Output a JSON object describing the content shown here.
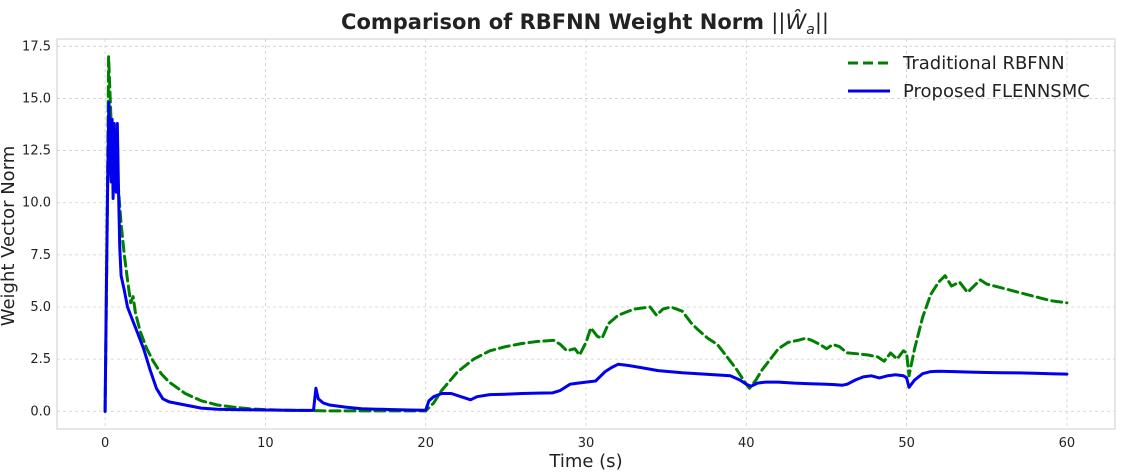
{
  "chart_data": {
    "type": "line",
    "title": "Comparison of RBFNN Weight Norm ||Ŵa||",
    "title_main": "Comparison of RBFNN Weight Norm ",
    "title_math": "||Ŵ",
    "title_sub": "a",
    "title_end": "||",
    "xlabel": "Time (s)",
    "ylabel": "Weight Vector Norm",
    "xlim": [
      -3,
      63
    ],
    "ylim": [
      -0.85,
      17.85
    ],
    "xticks": [
      0,
      10,
      20,
      30,
      40,
      50,
      60
    ],
    "xtick_labels": [
      "0",
      "10",
      "20",
      "30",
      "40",
      "50",
      "60"
    ],
    "yticks": [
      0,
      2.5,
      5,
      7.5,
      10,
      12.5,
      15,
      17.5
    ],
    "ytick_labels": [
      "0.0",
      "2.5",
      "5.0",
      "7.5",
      "10.0",
      "12.5",
      "15.0",
      "17.5"
    ],
    "grid": true,
    "legend_position": "top-right",
    "series": [
      {
        "name": "Traditional RBFNN",
        "color": "#008000",
        "style": "dashed",
        "points": [
          [
            0,
            0
          ],
          [
            0.12,
            8.0
          ],
          [
            0.22,
            17.0
          ],
          [
            0.32,
            15.0
          ],
          [
            0.42,
            13.0
          ],
          [
            0.55,
            12.5
          ],
          [
            0.7,
            11.8
          ],
          [
            0.85,
            10.5
          ],
          [
            1.0,
            9.0
          ],
          [
            1.2,
            7.5
          ],
          [
            1.4,
            6.3
          ],
          [
            1.6,
            5.2
          ],
          [
            1.75,
            5.5
          ],
          [
            1.9,
            4.7
          ],
          [
            2.2,
            3.8
          ],
          [
            2.6,
            3.0
          ],
          [
            3.0,
            2.4
          ],
          [
            3.5,
            1.8
          ],
          [
            4.0,
            1.4
          ],
          [
            5.0,
            0.85
          ],
          [
            6.0,
            0.5
          ],
          [
            7.0,
            0.3
          ],
          [
            8.0,
            0.2
          ],
          [
            9.0,
            0.12
          ],
          [
            10.0,
            0.08
          ],
          [
            11.0,
            0.05
          ],
          [
            12.0,
            0.04
          ],
          [
            13.0,
            0.03
          ],
          [
            14.0,
            0.02
          ],
          [
            16.0,
            0.02
          ],
          [
            18.0,
            0.02
          ],
          [
            20.0,
            0.02
          ],
          [
            20.5,
            0.4
          ],
          [
            21.0,
            1.0
          ],
          [
            22.0,
            1.9
          ],
          [
            23.0,
            2.5
          ],
          [
            24.0,
            2.9
          ],
          [
            25.0,
            3.1
          ],
          [
            26.0,
            3.25
          ],
          [
            27.0,
            3.35
          ],
          [
            28.0,
            3.4
          ],
          [
            28.4,
            3.2
          ],
          [
            28.8,
            2.9
          ],
          [
            29.3,
            3.0
          ],
          [
            29.6,
            2.7
          ],
          [
            30.0,
            3.3
          ],
          [
            30.3,
            4.0
          ],
          [
            30.7,
            3.6
          ],
          [
            31.0,
            3.5
          ],
          [
            31.4,
            4.2
          ],
          [
            32.0,
            4.6
          ],
          [
            33.0,
            4.9
          ],
          [
            34.0,
            5.0
          ],
          [
            34.4,
            4.6
          ],
          [
            34.8,
            4.9
          ],
          [
            35.3,
            5.0
          ],
          [
            36.0,
            4.8
          ],
          [
            36.6,
            4.2
          ],
          [
            37.0,
            3.9
          ],
          [
            37.6,
            3.5
          ],
          [
            38.2,
            3.2
          ],
          [
            38.8,
            2.6
          ],
          [
            39.4,
            2.0
          ],
          [
            40.0,
            1.3
          ],
          [
            40.2,
            1.1
          ],
          [
            40.6,
            1.5
          ],
          [
            41.0,
            2.0
          ],
          [
            41.6,
            2.6
          ],
          [
            42.0,
            3.0
          ],
          [
            42.6,
            3.3
          ],
          [
            43.2,
            3.4
          ],
          [
            43.7,
            3.5
          ],
          [
            44.1,
            3.4
          ],
          [
            44.6,
            3.2
          ],
          [
            45.0,
            3.0
          ],
          [
            45.4,
            3.2
          ],
          [
            45.8,
            3.1
          ],
          [
            46.3,
            2.8
          ],
          [
            47.0,
            2.75
          ],
          [
            47.6,
            2.7
          ],
          [
            48.2,
            2.6
          ],
          [
            48.6,
            2.4
          ],
          [
            49.0,
            2.8
          ],
          [
            49.4,
            2.5
          ],
          [
            49.8,
            2.9
          ],
          [
            50.0,
            2.8
          ],
          [
            50.15,
            1.7
          ],
          [
            50.5,
            3.0
          ],
          [
            51.0,
            4.5
          ],
          [
            51.5,
            5.6
          ],
          [
            52.0,
            6.2
          ],
          [
            52.4,
            6.5
          ],
          [
            52.8,
            6.0
          ],
          [
            53.3,
            6.2
          ],
          [
            53.8,
            5.7
          ],
          [
            54.2,
            6.0
          ],
          [
            54.6,
            6.3
          ],
          [
            55.0,
            6.1
          ],
          [
            56.0,
            5.9
          ],
          [
            57.0,
            5.7
          ],
          [
            58.0,
            5.5
          ],
          [
            59.0,
            5.3
          ],
          [
            60.0,
            5.2
          ]
        ]
      },
      {
        "name": "Proposed FLENNSMC",
        "color": "#0000ee",
        "style": "solid",
        "points": [
          [
            0,
            0
          ],
          [
            0.08,
            6.0
          ],
          [
            0.16,
            11.0
          ],
          [
            0.24,
            14.8
          ],
          [
            0.32,
            12.0
          ],
          [
            0.38,
            11.0
          ],
          [
            0.44,
            14.0
          ],
          [
            0.5,
            10.2
          ],
          [
            0.56,
            13.8
          ],
          [
            0.62,
            11.0
          ],
          [
            0.7,
            10.5
          ],
          [
            0.76,
            13.8
          ],
          [
            0.84,
            10.4
          ],
          [
            0.92,
            7.8
          ],
          [
            1.0,
            6.5
          ],
          [
            1.2,
            5.8
          ],
          [
            1.4,
            5.0
          ],
          [
            1.7,
            4.4
          ],
          [
            2.0,
            3.8
          ],
          [
            2.4,
            3.0
          ],
          [
            2.8,
            2.0
          ],
          [
            3.2,
            1.1
          ],
          [
            3.6,
            0.6
          ],
          [
            4.0,
            0.45
          ],
          [
            5.0,
            0.3
          ],
          [
            6.0,
            0.15
          ],
          [
            7.0,
            0.1
          ],
          [
            8.0,
            0.08
          ],
          [
            10.0,
            0.06
          ],
          [
            12.0,
            0.04
          ],
          [
            13.0,
            0.04
          ],
          [
            13.15,
            1.1
          ],
          [
            13.3,
            0.6
          ],
          [
            13.6,
            0.4
          ],
          [
            14.0,
            0.3
          ],
          [
            15.0,
            0.2
          ],
          [
            16.0,
            0.12
          ],
          [
            17.0,
            0.1
          ],
          [
            18.0,
            0.08
          ],
          [
            19.0,
            0.06
          ],
          [
            20.0,
            0.05
          ],
          [
            20.2,
            0.5
          ],
          [
            20.5,
            0.7
          ],
          [
            21.0,
            0.85
          ],
          [
            21.6,
            0.85
          ],
          [
            22.2,
            0.7
          ],
          [
            22.8,
            0.55
          ],
          [
            23.2,
            0.7
          ],
          [
            24.0,
            0.8
          ],
          [
            25.0,
            0.82
          ],
          [
            26.0,
            0.85
          ],
          [
            27.0,
            0.87
          ],
          [
            27.9,
            0.88
          ],
          [
            28.4,
            1.0
          ],
          [
            29.0,
            1.3
          ],
          [
            29.5,
            1.35
          ],
          [
            30.0,
            1.4
          ],
          [
            30.6,
            1.45
          ],
          [
            31.2,
            1.9
          ],
          [
            31.6,
            2.1
          ],
          [
            32.0,
            2.25
          ],
          [
            32.6,
            2.2
          ],
          [
            33.4,
            2.1
          ],
          [
            34.5,
            1.95
          ],
          [
            36.0,
            1.85
          ],
          [
            37.0,
            1.8
          ],
          [
            38.0,
            1.75
          ],
          [
            39.0,
            1.7
          ],
          [
            39.6,
            1.5
          ],
          [
            40.0,
            1.3
          ],
          [
            40.3,
            1.2
          ],
          [
            40.7,
            1.35
          ],
          [
            41.2,
            1.4
          ],
          [
            42.0,
            1.4
          ],
          [
            43.0,
            1.35
          ],
          [
            44.0,
            1.32
          ],
          [
            45.0,
            1.3
          ],
          [
            45.5,
            1.28
          ],
          [
            46.0,
            1.25
          ],
          [
            46.3,
            1.3
          ],
          [
            46.8,
            1.5
          ],
          [
            47.3,
            1.65
          ],
          [
            47.8,
            1.7
          ],
          [
            48.3,
            1.6
          ],
          [
            48.8,
            1.7
          ],
          [
            49.3,
            1.75
          ],
          [
            49.8,
            1.7
          ],
          [
            50.0,
            1.6
          ],
          [
            50.15,
            1.15
          ],
          [
            50.5,
            1.5
          ],
          [
            51.0,
            1.8
          ],
          [
            51.5,
            1.9
          ],
          [
            52.0,
            1.92
          ],
          [
            53.0,
            1.9
          ],
          [
            54.0,
            1.88
          ],
          [
            55.0,
            1.86
          ],
          [
            56.0,
            1.85
          ],
          [
            57.0,
            1.84
          ],
          [
            58.0,
            1.82
          ],
          [
            59.0,
            1.8
          ],
          [
            60.0,
            1.78
          ]
        ]
      }
    ]
  }
}
